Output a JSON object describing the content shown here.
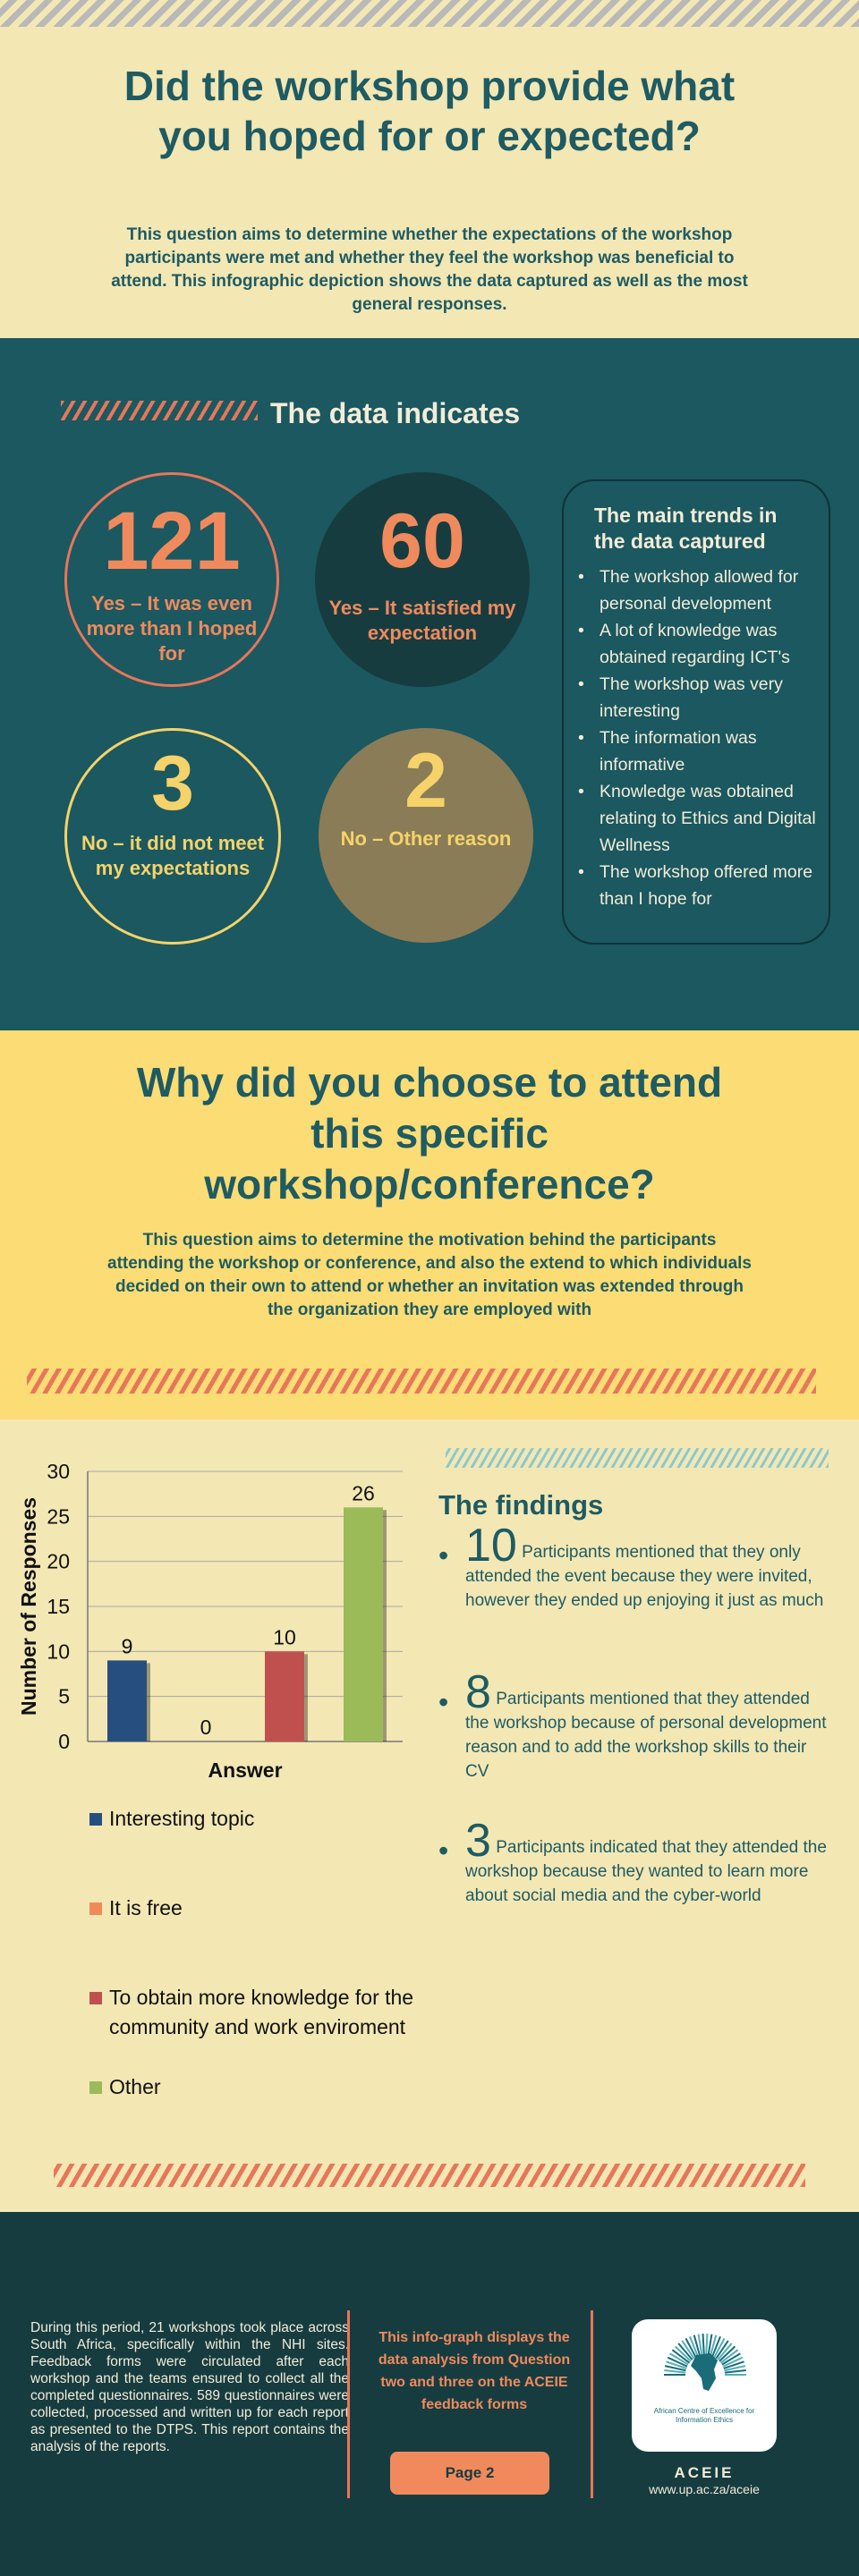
{
  "section1": {
    "title": "Did the workshop provide what you hoped for or expected?",
    "description": "This question aims to determine whether the expectations of the workshop participants were met and whether they feel the workshop was beneficial to attend. This infographic depiction shows the data captured as well as the most general responses."
  },
  "section2": {
    "header": "The data indicates",
    "stats": [
      {
        "number": "121",
        "label": "Yes – It was even more than I hoped for"
      },
      {
        "number": "60",
        "label": "Yes – It satisfied my expectation"
      },
      {
        "number": "3",
        "label": "No – it did not meet my expectations"
      },
      {
        "number": "2",
        "label": "No – Other reason"
      }
    ],
    "trends": {
      "title": "The main trends in the data captured",
      "items": [
        "The workshop allowed for personal development",
        "A lot of knowledge was obtained regarding ICT's",
        "The workshop was very interesting",
        "The information was informative",
        "Knowledge was obtained relating to Ethics and Digital Wellness",
        "The workshop offered more than I hope for"
      ]
    }
  },
  "section3": {
    "title": "Why did you choose to attend this specific workshop/conference?",
    "description": "This question aims to determine the motivation behind the participants attending the workshop or conference, and also the extend to which individuals decided on their own to attend or whether an invitation was extended through the organization they are employed with"
  },
  "chart_data": {
    "type": "bar",
    "categories": [
      "Interesting topic",
      "It is free",
      "To obtain more knowledge for the community and work enviroment",
      "Other"
    ],
    "values": [
      9,
      0,
      10,
      26
    ],
    "colors": [
      "#264f80",
      "#f08a5d",
      "#c0504d",
      "#9bbb59"
    ],
    "xlabel": "Answer",
    "ylabel": "Number of Responses",
    "ylim": [
      0,
      30
    ],
    "yticks": [
      0,
      5,
      10,
      15,
      20,
      25,
      30
    ],
    "grid": true,
    "legend": "bottom"
  },
  "findings": {
    "title": "The findings",
    "items": [
      {
        "number": "10",
        "text": "Participants mentioned that they only attended the event because they were invited, however they ended up enjoying it just as much"
      },
      {
        "number": "8",
        "text": "Participants mentioned that they attended the workshop because of personal development reason and to add the workshop skills to their CV"
      },
      {
        "number": "3",
        "text": "Participants indicated that they attended the workshop because they wanted to learn more about social media and the cyber-world"
      }
    ]
  },
  "footer": {
    "about": "During this period, 21 workshops took place across South Africa, specifically within the NHI sites. Feedback forms were circulated after each workshop and the teams ensured to collect all the completed questionnaires. 589 questionnaires were collected, processed and written up for each report as presented to the DTPS. This report contains the analysis of the reports.",
    "info": "This info-graph displays the data analysis from Question two and three on the ACEIE feedback forms",
    "page_label": "Page 2",
    "logo_text": "African Centre of Excellence for Information Ethics",
    "org": "ACEIE",
    "url": "www.up.ac.za/aceie"
  }
}
